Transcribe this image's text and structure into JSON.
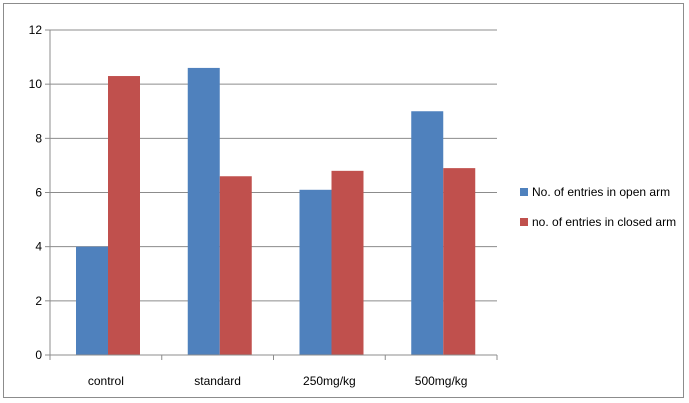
{
  "chart_data": {
    "type": "bar",
    "categories": [
      "control",
      "standard",
      "250mg/kg",
      "500mg/kg"
    ],
    "series": [
      {
        "name": "No. of entries in open arm",
        "color": "#4F81BD",
        "values": [
          4.0,
          10.6,
          6.1,
          9.0
        ]
      },
      {
        "name": "no. of entries in closed arm",
        "color": "#C0504D",
        "values": [
          10.3,
          6.6,
          6.8,
          6.9
        ]
      }
    ],
    "title": "",
    "xlabel": "",
    "ylabel": "",
    "ylim": [
      0,
      12
    ],
    "yticks": [
      0,
      2,
      4,
      6,
      8,
      10,
      12
    ],
    "grid": true,
    "legend_position": "right"
  }
}
